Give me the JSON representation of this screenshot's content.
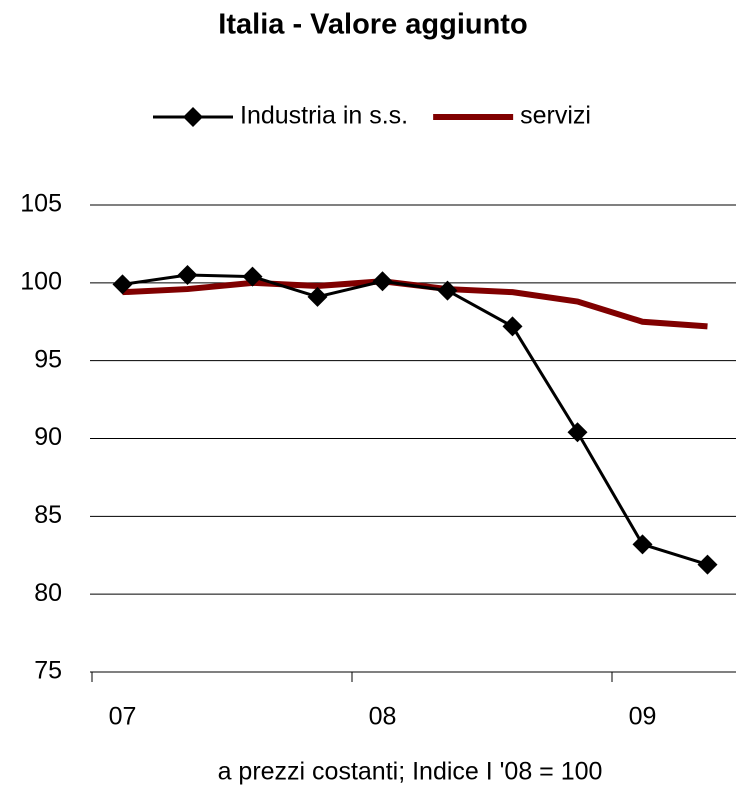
{
  "chart_data": {
    "type": "line",
    "title": "Italia - Valore aggiunto",
    "x_label": "a prezzi costanti; Indice I '08 = 100",
    "categories": [
      "07",
      null,
      null,
      null,
      "08",
      null,
      null,
      null,
      "09",
      null
    ],
    "series": [
      {
        "name": "Industria in s.s.",
        "color": "#000000",
        "marker": "diamond",
        "values": [
          99.9,
          100.5,
          100.4,
          99.1,
          100.1,
          99.5,
          97.2,
          90.4,
          83.2,
          81.9
        ]
      },
      {
        "name": "servizi",
        "color": "#800000",
        "values": [
          99.4,
          99.6,
          100.0,
          99.8,
          100.1,
          99.6,
          99.4,
          98.8,
          97.5,
          97.2
        ]
      }
    ],
    "ylim": [
      75,
      105
    ],
    "yticks": [
      75,
      80,
      85,
      90,
      95,
      100,
      105
    ],
    "grid": true,
    "legend": "top"
  }
}
